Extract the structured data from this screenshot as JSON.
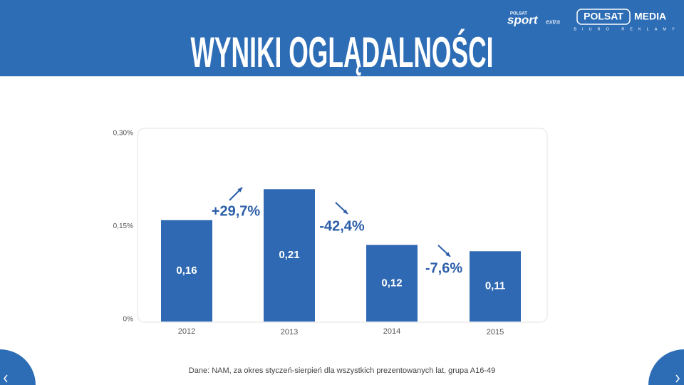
{
  "header": {
    "title": "WYNIKI OGLĄDALNOŚCI",
    "logo_brand_small": "POLSAT",
    "logo_brand": "sport",
    "logo_brand_suffix": "extra",
    "logo_media_left": "POLSAT",
    "logo_media_right": "MEDIA",
    "logo_media_sub": "BIURO REKLAMY"
  },
  "chart_data": {
    "type": "bar",
    "categories": [
      "2012",
      "2013",
      "2014",
      "2015"
    ],
    "values": [
      0.16,
      0.21,
      0.12,
      0.11
    ],
    "value_labels": [
      "0,16",
      "0,21",
      "0,12",
      "0,11"
    ],
    "color": "#2f69b3",
    "ylim": [
      0,
      0.3
    ],
    "yticks": [
      {
        "value": 0,
        "label": "0%"
      },
      {
        "value": 0.15,
        "label": "0,15%"
      },
      {
        "value": 0.3,
        "label": "0,30%"
      }
    ],
    "annotations": [
      "+29,7%",
      "-42,4%",
      "-7,6%"
    ]
  },
  "footer": {
    "source": "Dane: NAM, za okres styczeń-sierpień dla wszystkich prezentowanych lat, grupa A16-49"
  }
}
